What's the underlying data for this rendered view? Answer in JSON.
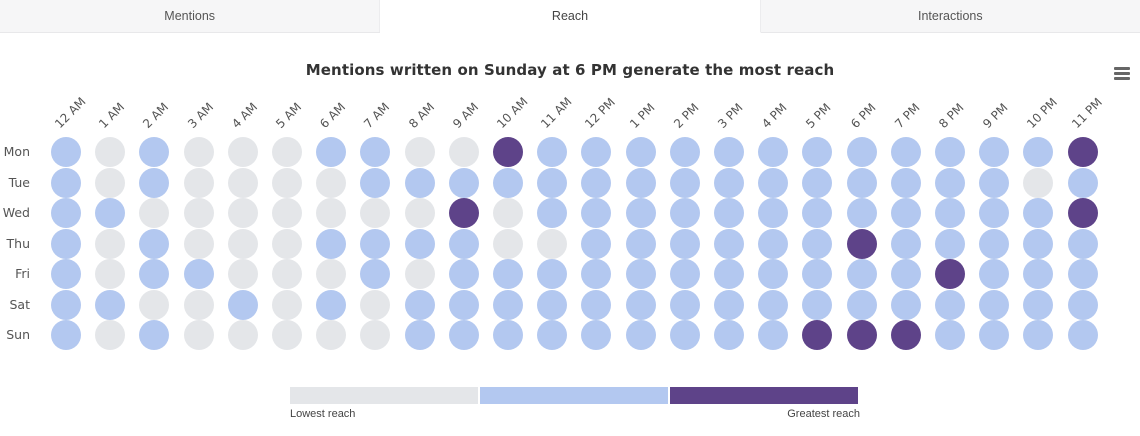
{
  "tabs": [
    {
      "label": "Mentions",
      "active": false
    },
    {
      "label": "Reach",
      "active": true
    },
    {
      "label": "Interactions",
      "active": false
    }
  ],
  "menu_icon": "hamburger-menu-icon",
  "colors": {
    "low": "#e4e6e9",
    "mid": "#b3c8f0",
    "high": "#5e4389"
  },
  "legend": {
    "low_label": "Lowest reach",
    "high_label": "Greatest reach"
  },
  "chart_data": {
    "type": "heatmap",
    "title": "Mentions written on Sunday at 6 PM generate the most reach",
    "x": [
      "12 AM",
      "1 AM",
      "2 AM",
      "3 AM",
      "4 AM",
      "5 AM",
      "6 AM",
      "7 AM",
      "8 AM",
      "9 AM",
      "10 AM",
      "11 AM",
      "12 PM",
      "1 PM",
      "2 PM",
      "3 PM",
      "4 PM",
      "5 PM",
      "6 PM",
      "7 PM",
      "8 PM",
      "9 PM",
      "10 PM",
      "11 PM"
    ],
    "y": [
      "Mon",
      "Tue",
      "Wed",
      "Thu",
      "Fri",
      "Sat",
      "Sun"
    ],
    "levels": [
      "low",
      "mid",
      "high"
    ],
    "values": [
      [
        1,
        0,
        1,
        0,
        0,
        0,
        1,
        1,
        0,
        0,
        2,
        1,
        1,
        1,
        1,
        1,
        1,
        1,
        1,
        1,
        1,
        1,
        1,
        2
      ],
      [
        1,
        0,
        1,
        0,
        0,
        0,
        0,
        1,
        1,
        1,
        1,
        1,
        1,
        1,
        1,
        1,
        1,
        1,
        1,
        1,
        1,
        1,
        0,
        1
      ],
      [
        1,
        1,
        0,
        0,
        0,
        0,
        0,
        0,
        0,
        2,
        0,
        1,
        1,
        1,
        1,
        1,
        1,
        1,
        1,
        1,
        1,
        1,
        1,
        2
      ],
      [
        1,
        0,
        1,
        0,
        0,
        0,
        1,
        1,
        1,
        1,
        0,
        0,
        1,
        1,
        1,
        1,
        1,
        1,
        2,
        1,
        1,
        1,
        1,
        1
      ],
      [
        1,
        0,
        1,
        1,
        0,
        0,
        0,
        1,
        0,
        1,
        1,
        1,
        1,
        1,
        1,
        1,
        1,
        1,
        1,
        1,
        2,
        1,
        1,
        1
      ],
      [
        1,
        1,
        0,
        0,
        1,
        0,
        1,
        0,
        1,
        1,
        1,
        1,
        1,
        1,
        1,
        1,
        1,
        1,
        1,
        1,
        1,
        1,
        1,
        1
      ],
      [
        1,
        0,
        1,
        0,
        0,
        0,
        0,
        0,
        1,
        1,
        1,
        1,
        1,
        1,
        1,
        1,
        1,
        2,
        2,
        2,
        1,
        1,
        1,
        1
      ]
    ],
    "legend": [
      "Lowest reach",
      "Greatest reach"
    ],
    "legend_position": "bottom",
    "grid": false
  }
}
